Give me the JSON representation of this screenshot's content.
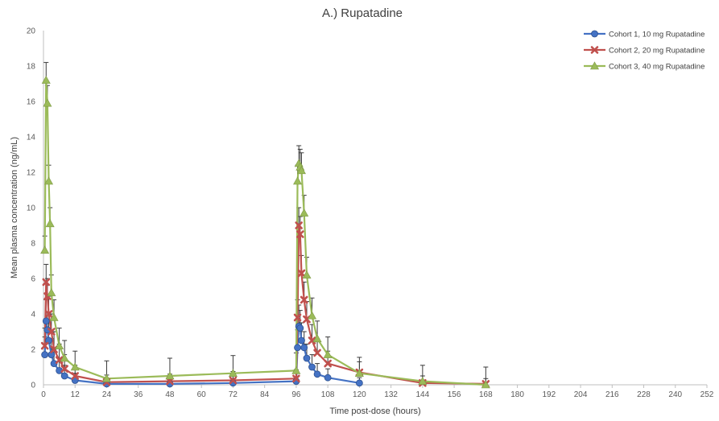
{
  "chart_data": {
    "type": "line",
    "title": "A.) Rupatadine",
    "xlabel": "Time post-dose (hours)",
    "ylabel": "Mean plasma concentration (ng/mL)",
    "xlim": [
      0,
      252
    ],
    "ylim": [
      0,
      20
    ],
    "xticks": [
      0,
      12,
      24,
      36,
      48,
      60,
      72,
      84,
      96,
      108,
      120,
      132,
      144,
      156,
      168,
      180,
      192,
      204,
      216,
      228,
      240,
      252
    ],
    "yticks": [
      0,
      2,
      4,
      6,
      8,
      10,
      12,
      14,
      16,
      18,
      20
    ],
    "grid": false,
    "legend_position": "top-right",
    "series": [
      {
        "name": "Cohort 1, 10 mg Rupatadine",
        "color": "#4472C4",
        "marker": "circle",
        "points": [
          [
            0.5,
            1.7
          ],
          [
            1,
            3.6
          ],
          [
            1.5,
            3.1
          ],
          [
            2,
            2.5
          ],
          [
            3,
            1.7
          ],
          [
            4,
            1.2
          ],
          [
            6,
            0.8
          ],
          [
            8,
            0.5
          ],
          [
            12,
            0.25
          ],
          [
            24,
            0.05
          ],
          [
            48,
            0.05
          ],
          [
            72,
            0.1
          ],
          [
            96,
            0.2
          ],
          [
            96.5,
            2.1
          ],
          [
            97,
            3.3
          ],
          [
            97.5,
            3.2
          ],
          [
            98,
            2.5
          ],
          [
            99,
            2.1
          ],
          [
            100,
            1.5
          ],
          [
            102,
            1.0
          ],
          [
            104,
            0.6
          ],
          [
            108,
            0.4
          ],
          [
            120,
            0.1
          ]
        ],
        "error_up": [
          1.0,
          1.2,
          1.0,
          1.0,
          0.9,
          0.8,
          0.7,
          0.6,
          0.4,
          0.3,
          0.3,
          0.4,
          0.5,
          1.0,
          1.2,
          1.0,
          1.0,
          0.9,
          0.8,
          0.7,
          0.6,
          0.5,
          0.3
        ]
      },
      {
        "name": "Cohort 2, 20 mg Rupatadine",
        "color": "#C0504D",
        "marker": "x",
        "points": [
          [
            0.5,
            2.2
          ],
          [
            1,
            5.8
          ],
          [
            1.5,
            5.0
          ],
          [
            2,
            4.0
          ],
          [
            3,
            3.0
          ],
          [
            4,
            2.0
          ],
          [
            6,
            1.4
          ],
          [
            8,
            0.9
          ],
          [
            12,
            0.5
          ],
          [
            24,
            0.15
          ],
          [
            48,
            0.2
          ],
          [
            72,
            0.25
          ],
          [
            96,
            0.35
          ],
          [
            96.5,
            3.8
          ],
          [
            97,
            9.0
          ],
          [
            97.5,
            8.5
          ],
          [
            98,
            6.3
          ],
          [
            99,
            4.8
          ],
          [
            100,
            3.7
          ],
          [
            102,
            2.5
          ],
          [
            104,
            1.8
          ],
          [
            108,
            1.2
          ],
          [
            120,
            0.7
          ],
          [
            144,
            0.1
          ],
          [
            168,
            0.05
          ]
        ],
        "error_up": [
          1.0,
          1.0,
          1.0,
          1.0,
          1.0,
          1.0,
          0.9,
          0.8,
          0.6,
          0.4,
          0.4,
          0.5,
          0.5,
          1.0,
          1.0,
          1.0,
          1.0,
          1.0,
          1.0,
          0.9,
          0.8,
          0.7,
          0.6,
          0.4,
          0.3
        ]
      },
      {
        "name": "Cohort 3, 40 mg Rupatadine",
        "color": "#9BBB59",
        "marker": "triangle",
        "points": [
          [
            0.5,
            7.6
          ],
          [
            1,
            17.2
          ],
          [
            1.5,
            15.9
          ],
          [
            2,
            11.5
          ],
          [
            2.5,
            9.1
          ],
          [
            3,
            5.2
          ],
          [
            4,
            3.8
          ],
          [
            6,
            2.2
          ],
          [
            8,
            1.5
          ],
          [
            12,
            1.0
          ],
          [
            24,
            0.35
          ],
          [
            48,
            0.5
          ],
          [
            72,
            0.65
          ],
          [
            96,
            0.8
          ],
          [
            96.5,
            11.5
          ],
          [
            97,
            12.5
          ],
          [
            97.5,
            12.3
          ],
          [
            98,
            12.1
          ],
          [
            99,
            9.7
          ],
          [
            100,
            6.2
          ],
          [
            102,
            3.9
          ],
          [
            104,
            2.6
          ],
          [
            108,
            1.7
          ],
          [
            120,
            0.65
          ],
          [
            144,
            0.2
          ],
          [
            168,
            0.0
          ]
        ],
        "error_up": [
          0.8,
          1.0,
          1.0,
          0.9,
          0.9,
          1.0,
          1.0,
          1.0,
          1.0,
          0.9,
          1.0,
          1.0,
          1.0,
          1.0,
          0.9,
          1.0,
          1.0,
          1.0,
          1.0,
          1.0,
          1.0,
          1.0,
          1.0,
          0.9,
          0.9,
          1.0
        ]
      }
    ]
  }
}
